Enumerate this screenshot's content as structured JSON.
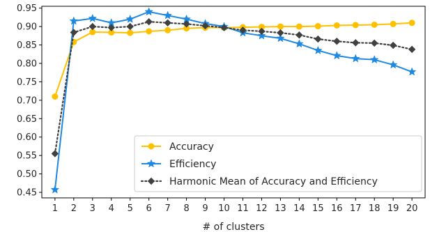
{
  "chart_data": {
    "type": "line",
    "title": "",
    "xlabel": "# of clusters",
    "ylabel": "",
    "x": [
      1,
      2,
      3,
      4,
      5,
      6,
      7,
      8,
      9,
      10,
      11,
      12,
      13,
      14,
      15,
      16,
      17,
      18,
      19,
      20
    ],
    "xlim": [
      0.3,
      20.7
    ],
    "ylim": [
      0.435,
      0.955
    ],
    "yticks": [
      0.45,
      0.5,
      0.55,
      0.6,
      0.65,
      0.7,
      0.75,
      0.8,
      0.85,
      0.9,
      0.95
    ],
    "ytick_labels": [
      "0.45",
      "0.50",
      "0.55",
      "0.60",
      "0.65",
      "0.70",
      "0.75",
      "0.80",
      "0.85",
      "0.90",
      "0.95"
    ],
    "xticks": [
      1,
      2,
      3,
      4,
      5,
      6,
      7,
      8,
      9,
      10,
      11,
      12,
      13,
      14,
      15,
      16,
      17,
      18,
      19,
      20
    ],
    "xtick_labels": [
      "1",
      "2",
      "3",
      "4",
      "5",
      "6",
      "7",
      "8",
      "9",
      "10",
      "11",
      "12",
      "13",
      "14",
      "15",
      "16",
      "17",
      "18",
      "19",
      "20"
    ],
    "grid": false,
    "legend_position": "lower-right",
    "series": [
      {
        "name": "Accuracy",
        "color": "#FFC000",
        "marker": "circle",
        "linestyle": "solid",
        "values": [
          0.71,
          0.858,
          0.885,
          0.884,
          0.883,
          0.887,
          0.89,
          0.895,
          0.897,
          0.897,
          0.898,
          0.899,
          0.9,
          0.9,
          0.901,
          0.903,
          0.904,
          0.905,
          0.907,
          0.91
        ]
      },
      {
        "name": "Efficiency",
        "color": "#1F88E0",
        "marker": "star",
        "linestyle": "solid",
        "values": [
          0.457,
          0.915,
          0.922,
          0.91,
          0.92,
          0.94,
          0.93,
          0.92,
          0.908,
          0.9,
          0.883,
          0.875,
          0.868,
          0.853,
          0.835,
          0.821,
          0.813,
          0.81,
          0.796,
          0.777
        ]
      },
      {
        "name": "Harmonic Mean of Accuracy and Efficiency",
        "color": "#404040",
        "marker": "diamond",
        "linestyle": "dotted",
        "values": [
          0.555,
          0.884,
          0.9,
          0.897,
          0.9,
          0.913,
          0.91,
          0.907,
          0.902,
          0.897,
          0.89,
          0.887,
          0.883,
          0.877,
          0.866,
          0.86,
          0.856,
          0.855,
          0.849,
          0.838
        ]
      }
    ]
  }
}
